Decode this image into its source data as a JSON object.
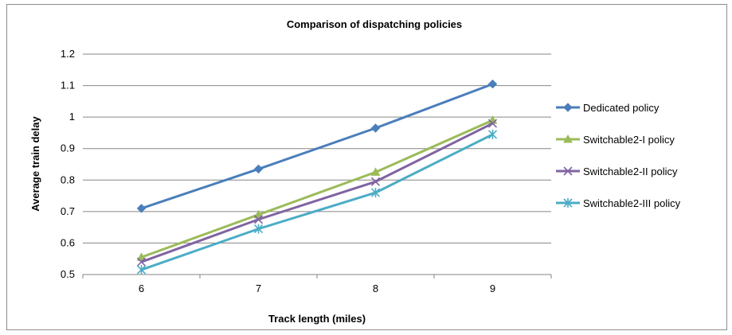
{
  "chart_data": {
    "type": "line",
    "title": "Comparison of dispatching policies",
    "xlabel": "Track length (miles)",
    "ylabel": "Average train delay",
    "x": [
      6,
      7,
      8,
      9
    ],
    "ylim": [
      0.5,
      1.2
    ],
    "yticks": [
      "0.5",
      "0.6",
      "0.7",
      "0.8",
      "0.9",
      "1",
      "1.1",
      "1.2"
    ],
    "xticks": [
      "6",
      "7",
      "8",
      "9"
    ],
    "grid": true,
    "legend": "right",
    "series": [
      {
        "name": "Dedicated policy",
        "values": [
          0.71,
          0.835,
          0.965,
          1.105
        ],
        "color": "#4a7ebb",
        "marker": "diamond"
      },
      {
        "name": "Switchable2-I policy",
        "values": [
          0.555,
          0.69,
          0.825,
          0.99
        ],
        "color": "#9bbb59",
        "marker": "triangle"
      },
      {
        "name": "Switchable2-II policy",
        "values": [
          0.54,
          0.675,
          0.795,
          0.98
        ],
        "color": "#8064a2",
        "marker": "x"
      },
      {
        "name": "Switchable2-III policy",
        "values": [
          0.515,
          0.645,
          0.76,
          0.945
        ],
        "color": "#4bacc6",
        "marker": "star"
      }
    ]
  }
}
